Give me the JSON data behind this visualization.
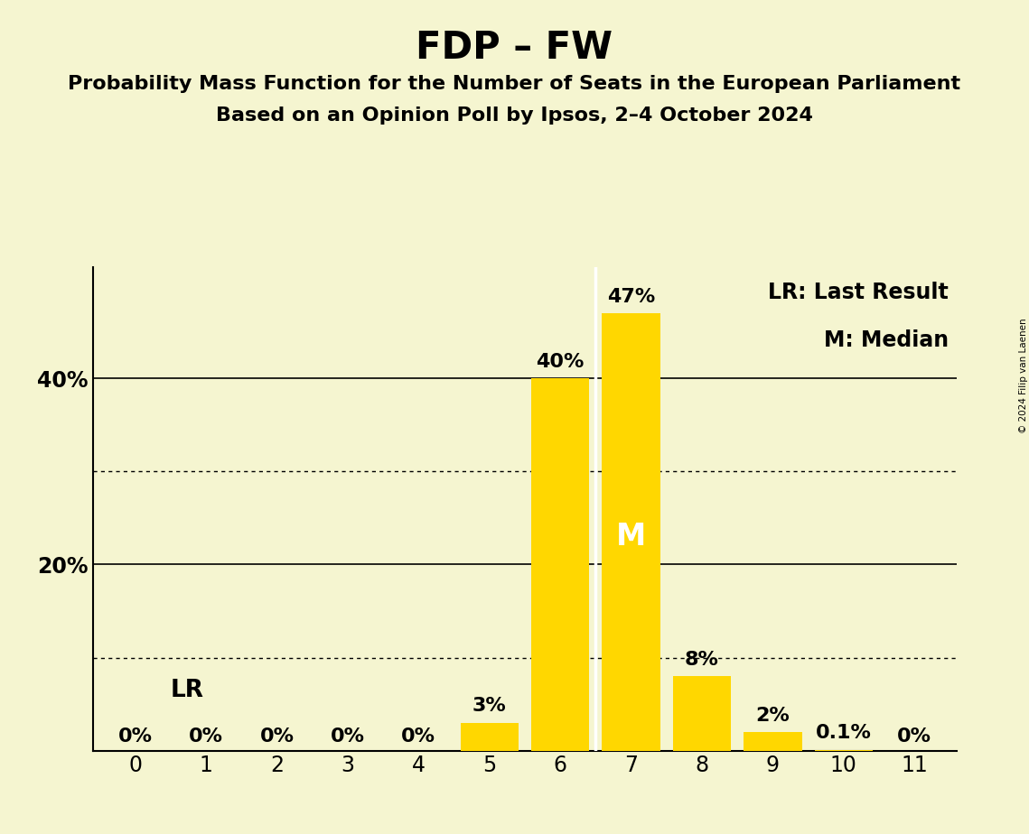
{
  "title": "FDP – FW",
  "subtitle1": "Probability Mass Function for the Number of Seats in the European Parliament",
  "subtitle2": "Based on an Opinion Poll by Ipsos, 2–4 October 2024",
  "copyright": "© 2024 Filip van Laenen",
  "categories": [
    0,
    1,
    2,
    3,
    4,
    5,
    6,
    7,
    8,
    9,
    10,
    11
  ],
  "values": [
    0.0,
    0.0,
    0.0,
    0.0,
    0.0,
    3.0,
    40.0,
    47.0,
    8.0,
    2.0,
    0.1,
    0.0
  ],
  "labels": [
    "0%",
    "0%",
    "0%",
    "0%",
    "0%",
    "3%",
    "40%",
    "47%",
    "8%",
    "2%",
    "0.1%",
    "0%"
  ],
  "bar_color": "#FFD700",
  "background_color": "#F5F5D0",
  "median": 7,
  "last_result": 6,
  "ylim_max": 52,
  "solid_yticks": [
    20,
    40
  ],
  "dotted_yticks": [
    10,
    30
  ],
  "legend_lr": "LR: Last Result",
  "legend_m": "M: Median",
  "label_lr": "LR",
  "label_m": "M",
  "title_fontsize": 30,
  "subtitle_fontsize": 16,
  "axis_tick_fontsize": 17,
  "bar_label_fontsize": 16,
  "legend_fontsize": 17,
  "lr_label_fontsize": 19,
  "m_label_fontsize": 24,
  "ytick_labels_map": {
    "20": "20%",
    "40": "40%"
  }
}
